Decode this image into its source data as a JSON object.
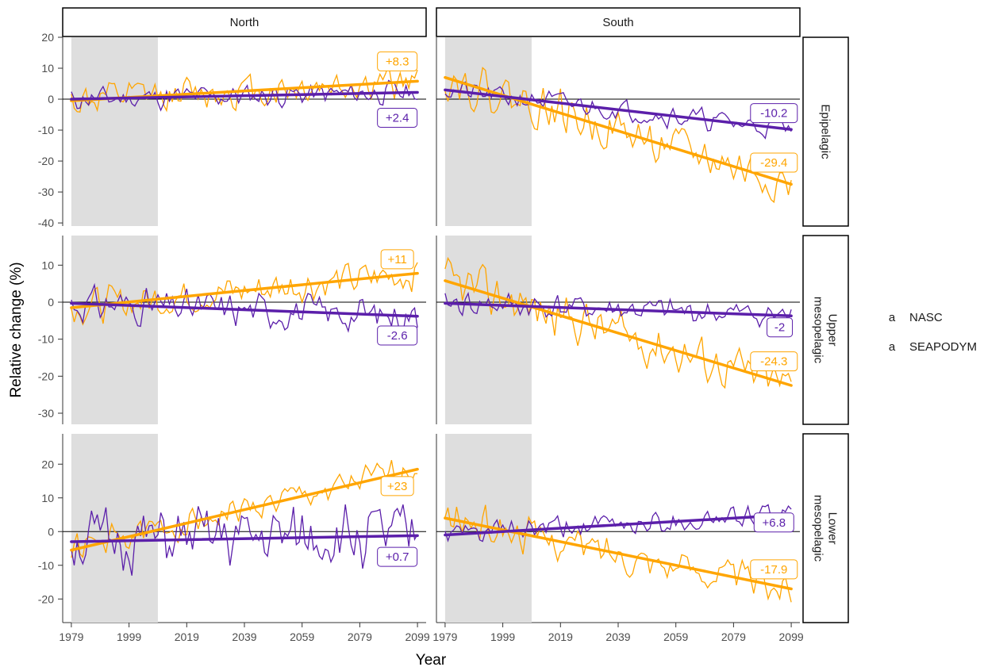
{
  "chart_data": {
    "type": "line",
    "xlabel": "Year",
    "ylabel": "Relative change (%)",
    "x_ticks": [
      1979,
      1999,
      2019,
      2039,
      2059,
      2079,
      2099
    ],
    "xlim": [
      1976,
      2102
    ],
    "shaded_period": [
      1979,
      2009
    ],
    "columns": [
      "North",
      "South"
    ],
    "rows": [
      "Epipelagic",
      "Upper\nmesopelagic",
      "Lower\nmesopelagic"
    ],
    "legend": {
      "position": "right",
      "items": [
        {
          "key": "NASC",
          "glyph": "a",
          "label": "NASC",
          "color": "#5B1FAA"
        },
        {
          "key": "SEAPODYM",
          "glyph": "a",
          "label": "SEAPODYM",
          "color": "#FFA500"
        }
      ]
    },
    "row_axes": [
      {
        "ylim": [
          -41,
          20
        ],
        "ticks": [
          20,
          10,
          0,
          -10,
          -20,
          -30,
          -40
        ]
      },
      {
        "ylim": [
          -33,
          18
        ],
        "ticks": [
          10,
          0,
          -10,
          -20,
          -30
        ]
      },
      {
        "ylim": [
          -27,
          29
        ],
        "ticks": [
          20,
          10,
          0,
          -10,
          -20
        ]
      }
    ],
    "panels": [
      {
        "row": 0,
        "col": 0,
        "NASC": {
          "trend_start": 0.0,
          "trend_end": 2.2,
          "label": "+2.4",
          "label_x": 2092,
          "label_y": -6,
          "noise": 3.0,
          "seed": 11
        },
        "SEAPODYM": {
          "trend_start": -0.5,
          "trend_end": 5.8,
          "label": "+8.3",
          "label_x": 2092,
          "label_y": 12.2,
          "noise": 4.5,
          "seed": 12
        }
      },
      {
        "row": 0,
        "col": 1,
        "NASC": {
          "trend_start": 3.0,
          "trend_end": -9.8,
          "label": "-10.2",
          "label_x": 2093,
          "label_y": -4.5,
          "noise": 2.8,
          "seed": 21
        },
        "SEAPODYM": {
          "trend_start": 7.0,
          "trend_end": -27.5,
          "label": "-29.4",
          "label_x": 2093,
          "label_y": -20.5,
          "noise": 5.5,
          "seed": 22
        }
      },
      {
        "row": 1,
        "col": 0,
        "NASC": {
          "trend_start": -0.3,
          "trend_end": -3.8,
          "label": "-2.6",
          "label_x": 2092,
          "label_y": -9.0,
          "noise": 3.8,
          "seed": 31
        },
        "SEAPODYM": {
          "trend_start": -1.5,
          "trend_end": 7.8,
          "label": "+11",
          "label_x": 2092,
          "label_y": 11.6,
          "noise": 3.8,
          "seed": 32
        }
      },
      {
        "row": 1,
        "col": 1,
        "NASC": {
          "trend_start": -0.3,
          "trend_end": -3.7,
          "label": "-2",
          "label_x": 2095,
          "label_y": -6.8,
          "noise": 2.8,
          "seed": 41
        },
        "SEAPODYM": {
          "trend_start": 5.8,
          "trend_end": -22.5,
          "label": "-24.3",
          "label_x": 2093,
          "label_y": -16.0,
          "noise": 5.0,
          "seed": 42
        }
      },
      {
        "row": 2,
        "col": 0,
        "NASC": {
          "trend_start": -3.0,
          "trend_end": -1.2,
          "label": "+0.7",
          "label_x": 2092,
          "label_y": -7.5,
          "noise": 7.5,
          "seed": 51
        },
        "SEAPODYM": {
          "trend_start": -5.5,
          "trend_end": 18.5,
          "label": "+23",
          "label_x": 2092,
          "label_y": 13.5,
          "noise": 3.5,
          "seed": 52
        }
      },
      {
        "row": 2,
        "col": 1,
        "NASC": {
          "trend_start": -1.0,
          "trend_end": 5.0,
          "label": "+6.8",
          "label_x": 2093,
          "label_y": 2.7,
          "noise": 2.8,
          "seed": 61
        },
        "SEAPODYM": {
          "trend_start": 4.0,
          "trend_end": -17.0,
          "label": "-17.9",
          "label_x": 2093,
          "label_y": -11.2,
          "noise": 4.2,
          "seed": 62
        }
      }
    ]
  }
}
